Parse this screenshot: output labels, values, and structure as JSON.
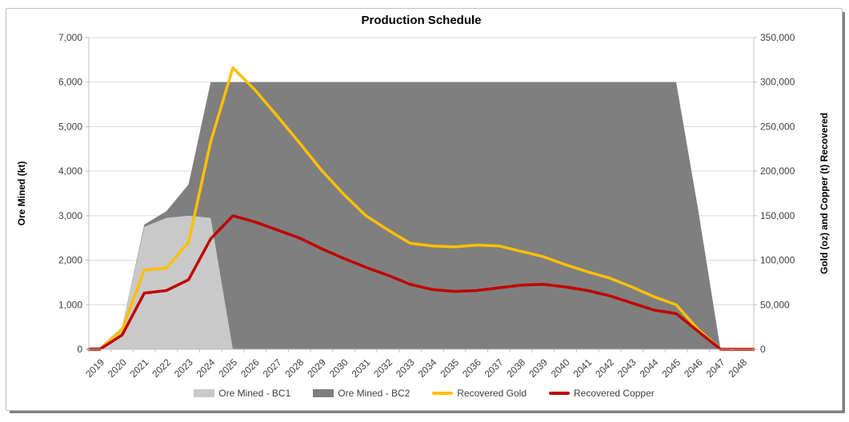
{
  "chart_data": {
    "type": "combo-area-line",
    "title": "Production Schedule",
    "x": {
      "years": [
        2019,
        2020,
        2021,
        2022,
        2023,
        2024,
        2025,
        2026,
        2027,
        2028,
        2029,
        2030,
        2031,
        2032,
        2033,
        2034,
        2035,
        2036,
        2037,
        2038,
        2039,
        2040,
        2041,
        2042,
        2043,
        2044,
        2045,
        2046,
        2047,
        2048
      ]
    },
    "axes": {
      "left": {
        "label": "Ore Mined (kt)",
        "min": 0,
        "max": 7000,
        "step": 1000
      },
      "right": {
        "label": "Gold (oz) and Copper (t) Recovered",
        "min": 0,
        "max": 350000,
        "step": 50000
      }
    },
    "grid": "horizontal",
    "legend_position": "bottom",
    "series": [
      {
        "name": "Ore Mined - BC1",
        "type": "area",
        "stacked": true,
        "axis": "left",
        "color": "#C9C9C9",
        "values": [
          50,
          500,
          2750,
          2950,
          3000,
          2950,
          0,
          0,
          0,
          0,
          0,
          0,
          0,
          0,
          0,
          0,
          0,
          0,
          0,
          0,
          0,
          0,
          0,
          0,
          0,
          0,
          0,
          0,
          0,
          0
        ]
      },
      {
        "name": "Ore Mined - BC2",
        "type": "area",
        "stacked": true,
        "axis": "left",
        "color": "#7F7F7F",
        "values": [
          0,
          0,
          50,
          150,
          700,
          3050,
          6000,
          6000,
          6000,
          6000,
          6000,
          6000,
          6000,
          6000,
          6000,
          6000,
          6000,
          6000,
          6000,
          6000,
          6000,
          6000,
          6000,
          6000,
          6000,
          6000,
          6000,
          3100,
          0,
          0
        ]
      },
      {
        "name": "Recovered Gold",
        "type": "line",
        "axis": "right",
        "color": "#FFC000",
        "values": [
          0,
          22000,
          89000,
          91000,
          120000,
          233000,
          316000,
          291000,
          262000,
          232000,
          201000,
          174000,
          150000,
          134000,
          119000,
          116000,
          115000,
          117000,
          116000,
          110000,
          104000,
          95000,
          87000,
          80000,
          70000,
          59000,
          50000,
          22000,
          0,
          0
        ]
      },
      {
        "name": "Recovered Copper",
        "type": "line",
        "axis": "right",
        "color": "#C00000",
        "values": [
          0,
          16000,
          63000,
          66000,
          78000,
          124000,
          150000,
          143000,
          134000,
          125000,
          113000,
          102000,
          92000,
          83000,
          73000,
          67000,
          65000,
          66000,
          69000,
          72000,
          73000,
          70000,
          66000,
          60000,
          52000,
          44000,
          40000,
          20000,
          0,
          0
        ]
      }
    ]
  },
  "colors": {
    "gridline": "#D9D9D9",
    "axis_line": "#BFBFBF",
    "tick_text": "#404040",
    "title_text": "#000000",
    "frame_border": "#BFBFBF",
    "frame_shadow": "#808080"
  }
}
